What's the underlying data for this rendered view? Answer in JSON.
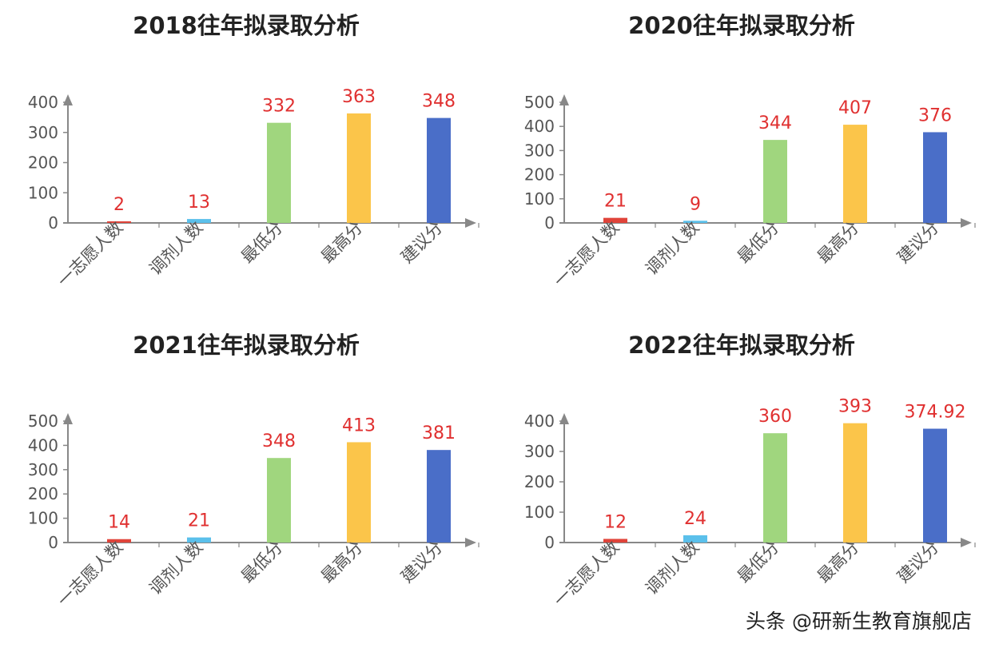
{
  "chart_data": [
    {
      "type": "bar",
      "title": "2018往年拟录取分析",
      "categories": [
        "一志愿人数",
        "调剂人数",
        "最低分",
        "最高分",
        "建议分"
      ],
      "values": [
        2,
        13,
        332,
        363,
        348
      ],
      "value_labels": [
        "2",
        "13",
        "332",
        "363",
        "348"
      ],
      "yticks": [
        0,
        100,
        200,
        300,
        400
      ],
      "ylim": [
        0,
        400
      ],
      "bar_colors": [
        "#e0443a",
        "#5bc0eb",
        "#a0d67e",
        "#fbc54a",
        "#4a6ec8"
      ],
      "xlabel": "",
      "ylabel": "",
      "grid": false,
      "legend": "none"
    },
    {
      "type": "bar",
      "title": "2020往年拟录取分析",
      "categories": [
        "一志愿人数",
        "调剂人数",
        "最低分",
        "最高分",
        "建议分"
      ],
      "values": [
        21,
        9,
        344,
        407,
        376
      ],
      "value_labels": [
        "21",
        "9",
        "344",
        "407",
        "376"
      ],
      "yticks": [
        0,
        100,
        200,
        300,
        400,
        500
      ],
      "ylim": [
        0,
        500
      ],
      "bar_colors": [
        "#e0443a",
        "#5bc0eb",
        "#a0d67e",
        "#fbc54a",
        "#4a6ec8"
      ],
      "xlabel": "",
      "ylabel": "",
      "grid": false,
      "legend": "none"
    },
    {
      "type": "bar",
      "title": "2021往年拟录取分析",
      "categories": [
        "一志愿人数",
        "调剂人数",
        "最低分",
        "最高分",
        "建议分"
      ],
      "values": [
        14,
        21,
        348,
        413,
        381
      ],
      "value_labels": [
        "14",
        "21",
        "348",
        "413",
        "381"
      ],
      "yticks": [
        0,
        100,
        200,
        300,
        400,
        500
      ],
      "ylim": [
        0,
        500
      ],
      "bar_colors": [
        "#e0443a",
        "#5bc0eb",
        "#a0d67e",
        "#fbc54a",
        "#4a6ec8"
      ],
      "xlabel": "",
      "ylabel": "",
      "grid": false,
      "legend": "none"
    },
    {
      "type": "bar",
      "title": "2022往年拟录取分析",
      "categories": [
        "一志愿人数",
        "调剂人数",
        "最低分",
        "最高分",
        "建议分"
      ],
      "values": [
        12,
        24,
        360,
        393,
        374.92
      ],
      "value_labels": [
        "12",
        "24",
        "360",
        "393",
        "374.92"
      ],
      "yticks": [
        0,
        100,
        200,
        300,
        400
      ],
      "ylim": [
        0,
        400
      ],
      "bar_colors": [
        "#e0443a",
        "#5bc0eb",
        "#a0d67e",
        "#fbc54a",
        "#4a6ec8"
      ],
      "xlabel": "",
      "ylabel": "",
      "grid": false,
      "legend": "none"
    }
  ],
  "watermark": "头条 @研新生教育旗舰店",
  "colors": {
    "axis": "#888888",
    "tick_text": "#555555",
    "value_label": "#e03030",
    "title": "#222222"
  }
}
